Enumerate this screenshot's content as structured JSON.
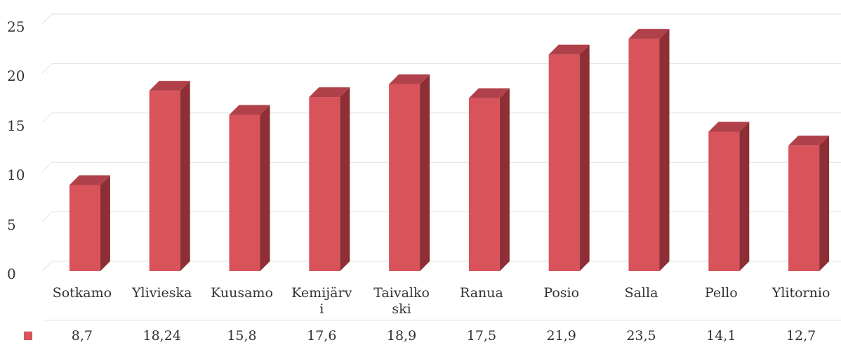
{
  "chart_data": {
    "type": "bar",
    "title": "",
    "xlabel": "",
    "ylabel": "",
    "ylim": [
      0,
      25
    ],
    "yticks": [
      "0",
      "5",
      "10",
      "15",
      "20",
      "25"
    ],
    "categories": [
      [
        "Sotkamo"
      ],
      [
        "Ylivieska"
      ],
      [
        "Kuusamo"
      ],
      [
        "Kemijärv",
        "i"
      ],
      [
        "Taivalko",
        "ski"
      ],
      [
        "Ranua"
      ],
      [
        "Posio"
      ],
      [
        "Salla"
      ],
      [
        "Pello"
      ],
      [
        "Ylitornio"
      ]
    ],
    "series": [
      {
        "values": [
          8.7,
          18.24,
          15.8,
          17.6,
          18.9,
          17.5,
          21.9,
          23.5,
          14.1,
          12.7
        ],
        "labels": [
          "8,7",
          "18,24",
          "15,8",
          "17,6",
          "18,9",
          "17,5",
          "21,9",
          "23,5",
          "14,1",
          "12,7"
        ]
      }
    ],
    "grid": true,
    "style": "3d-column",
    "colors": {
      "front": "#d9535a",
      "side": "#8e2f35",
      "top": "#b0414a",
      "grid": "#e2e2e2"
    }
  }
}
